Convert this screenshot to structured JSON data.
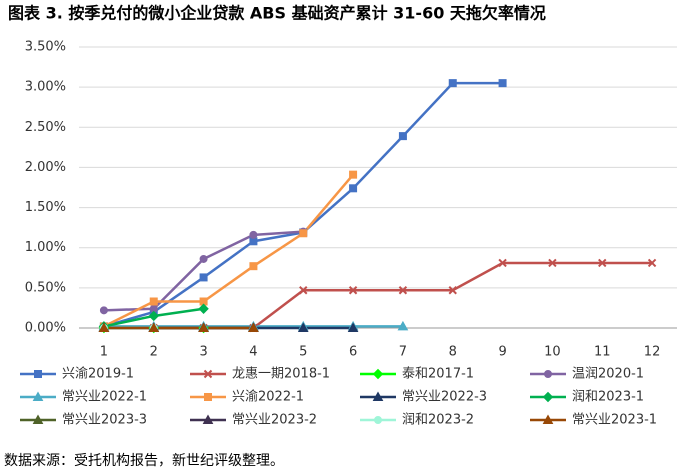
{
  "chart_data": {
    "type": "line",
    "title": "图表 3. 按季兑付的微小企业贷款 ABS 基础资产累计 31-60 天拖欠率情况",
    "source": "数据来源：受托机构报告，新世纪评级整理。",
    "x": [
      1,
      2,
      3,
      4,
      5,
      6,
      7,
      8,
      9,
      10,
      11,
      12
    ],
    "ylim": [
      0,
      3.5
    ],
    "yticks": [
      {
        "value": 0,
        "label": "0.00%"
      },
      {
        "value": 0.5,
        "label": "0.50%"
      },
      {
        "value": 1,
        "label": "1.00%"
      },
      {
        "value": 1.5,
        "label": "1.50%"
      },
      {
        "value": 2,
        "label": "2.00%"
      },
      {
        "value": 2.5,
        "label": "2.50%"
      },
      {
        "value": 3,
        "label": "3.00%"
      },
      {
        "value": 3.5,
        "label": "3.50%"
      }
    ],
    "grid": true,
    "series": [
      {
        "name": "兴渝2019-1",
        "color": "#4472c4",
        "marker": "square",
        "values": [
          0.02,
          0.2,
          0.63,
          1.08,
          1.19,
          1.74,
          2.39,
          3.05,
          3.05,
          null,
          null,
          null
        ]
      },
      {
        "name": "龙惠一期2018-1",
        "color": "#c0504d",
        "marker": "x",
        "values": [
          0,
          0,
          0,
          0,
          0.47,
          0.47,
          0.47,
          0.47,
          0.81,
          0.81,
          0.81,
          0.81
        ]
      },
      {
        "name": "泰和2017-1",
        "color": "#00ff00",
        "marker": "diamond",
        "values": [
          0,
          0,
          0,
          null,
          null,
          null,
          null,
          null,
          null,
          null,
          null,
          null
        ]
      },
      {
        "name": "温润2020-1",
        "color": "#8064a2",
        "marker": "circle",
        "values": [
          0.22,
          0.24,
          0.86,
          1.16,
          1.2,
          null,
          null,
          null,
          null,
          null,
          null,
          null
        ]
      },
      {
        "name": "常兴业2022-1",
        "color": "#4bacc6",
        "marker": "triangle",
        "values": [
          0.02,
          0.02,
          0.02,
          0.02,
          0.02,
          0.02,
          0.02,
          null,
          null,
          null,
          null,
          null
        ]
      },
      {
        "name": "兴渝2022-1",
        "color": "#f79646",
        "marker": "square",
        "values": [
          0.02,
          0.33,
          0.33,
          0.77,
          1.18,
          1.91,
          null,
          null,
          null,
          null,
          null,
          null
        ]
      },
      {
        "name": "常兴业2022-3",
        "color": "#1f3864",
        "marker": "triangle",
        "values": [
          0,
          0,
          0,
          0,
          0,
          0,
          null,
          null,
          null,
          null,
          null,
          null
        ]
      },
      {
        "name": "润和2023-1",
        "color": "#00b050",
        "marker": "diamond",
        "values": [
          0.02,
          0.15,
          0.24,
          null,
          null,
          null,
          null,
          null,
          null,
          null,
          null,
          null
        ]
      },
      {
        "name": "常兴业2023-3",
        "color": "#4f6228",
        "marker": "triangle",
        "values": [
          0,
          0,
          0,
          0,
          null,
          null,
          null,
          null,
          null,
          null,
          null,
          null
        ]
      },
      {
        "name": "常兴业2023-2",
        "color": "#3f3151",
        "marker": "triangle",
        "values": [
          0,
          0,
          0,
          0,
          null,
          null,
          null,
          null,
          null,
          null,
          null,
          null
        ]
      },
      {
        "name": "润和2023-2",
        "color": "#9ff5d8",
        "marker": "circle",
        "values": [
          0,
          0,
          null,
          null,
          null,
          null,
          null,
          null,
          null,
          null,
          null,
          null
        ]
      },
      {
        "name": "常兴业2023-1",
        "color": "#984806",
        "marker": "triangle",
        "values": [
          0,
          0,
          0,
          0,
          null,
          null,
          null,
          null,
          null,
          null,
          null,
          null
        ]
      }
    ]
  }
}
